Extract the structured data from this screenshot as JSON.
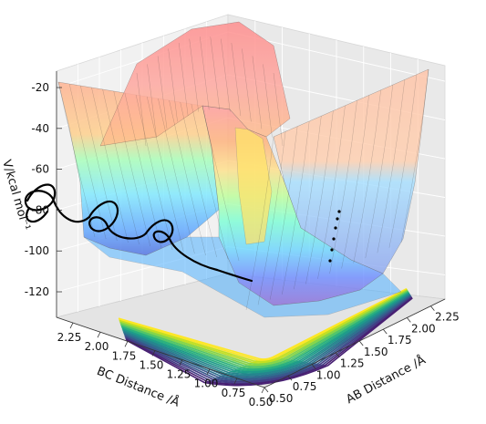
{
  "chart_data": {
    "type": "surface",
    "title": "",
    "xlabel": "AB Distance /Å",
    "ylabel": "BC Distance /Å",
    "zlabel": "V/kcal mol⁻¹",
    "x_ticks": [
      "0.50",
      "0.75",
      "1.00",
      "1.25",
      "1.50",
      "1.75",
      "2.00",
      "2.25"
    ],
    "y_ticks": [
      "0.50",
      "0.75",
      "1.00",
      "1.25",
      "1.50",
      "1.75",
      "2.00",
      "2.25"
    ],
    "z_ticks": [
      "-20",
      "-40",
      "-60",
      "-80",
      "-100",
      "-120"
    ],
    "xlim": [
      0.5,
      2.4
    ],
    "ylim": [
      0.5,
      2.4
    ],
    "zlim": [
      -135,
      -20
    ],
    "surface_colormap": "jet",
    "contour_colormap": "viridis",
    "contour_projection": "floor",
    "trajectory": {
      "color": "#000000",
      "description_visible": false
    },
    "grid": true
  }
}
